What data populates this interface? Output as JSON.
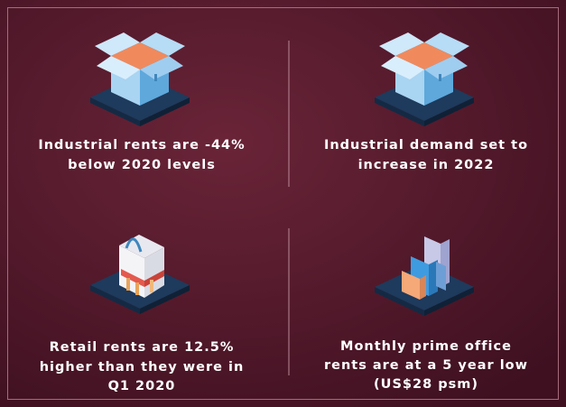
{
  "items": [
    {
      "lines": [
        "Industrial rents are -44%",
        "below 2020 levels"
      ]
    },
    {
      "lines": [
        "Industrial demand set to",
        "increase in 2022"
      ]
    },
    {
      "lines": [
        "Retail rents are 12.5%",
        "higher than they were in",
        "Q1 2020"
      ]
    },
    {
      "lines": [
        "Monthly prime office",
        "rents are at a 5 year low",
        "(US$28 psm)"
      ]
    }
  ]
}
